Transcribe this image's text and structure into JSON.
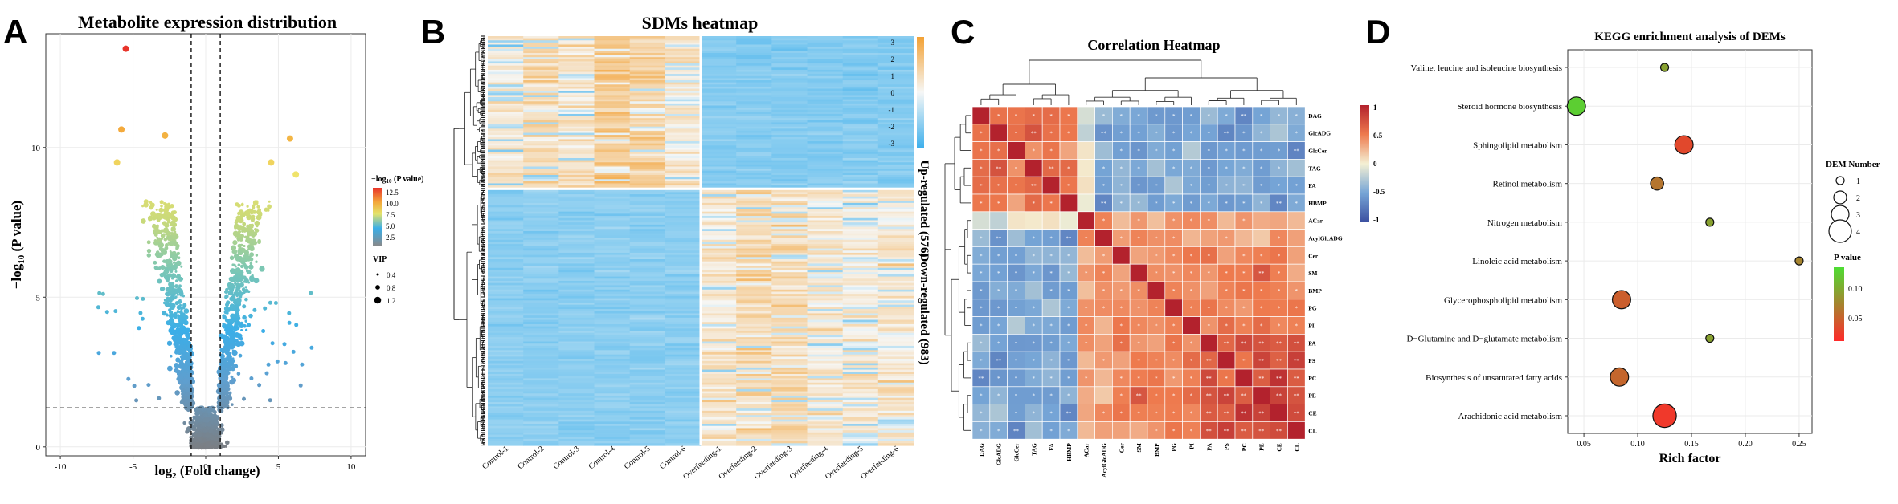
{
  "panels": {
    "A": {
      "letter": "A"
    },
    "B": {
      "letter": "B"
    },
    "C": {
      "letter": "C"
    },
    "D": {
      "letter": "D"
    }
  },
  "chart_data": [
    {
      "type": "scatter",
      "title": "Metabolite expression distribution",
      "xlabel": "log2 (Fold change)",
      "ylabel": "-log10 (P value)",
      "xlim": [
        -11,
        11
      ],
      "ylim": [
        -0.3,
        13.8
      ],
      "xticks": [
        -10,
        -5,
        0,
        5,
        10
      ],
      "yticks": [
        0,
        5,
        10
      ],
      "thresholds": {
        "x": [
          -1,
          1
        ],
        "y": 1.3
      },
      "color_legend": {
        "title": "-log10 (P value)",
        "ticks": [
          "12.5",
          "10.0",
          "7.5",
          "5.0",
          "2.5"
        ]
      },
      "size_legend": {
        "title": "VIP",
        "items": [
          "0.4",
          "0.8",
          "1.2"
        ]
      },
      "highlight_points": [
        {
          "x": -5.5,
          "y": 13.3
        },
        {
          "x": -5.8,
          "y": 10.6
        },
        {
          "x": -2.8,
          "y": 10.4
        },
        {
          "x": -6.1,
          "y": 9.5
        },
        {
          "x": 5.8,
          "y": 10.3
        },
        {
          "x": 6.2,
          "y": 9.1
        },
        {
          "x": 4.5,
          "y": 9.5
        }
      ]
    },
    {
      "type": "heatmap",
      "title": "SDMs heatmap",
      "columns": [
        "Control-1",
        "Control-2",
        "Control-3",
        "Control-4",
        "Control-5",
        "Control-6",
        "Overfeeding-1",
        "Overfeeding-2",
        "Overfeeding-3",
        "Overfeeding-4",
        "Overfeeding-5",
        "Overfeeding-6"
      ],
      "row_groups": [
        "Up-regulated (576)",
        "Down-regulated (983)"
      ],
      "colorbar_ticks": [
        "3",
        "2",
        "1",
        "0",
        "-1",
        "-2",
        "-3"
      ],
      "colors": {
        "low": "#3fb0ec",
        "mid": "#f6f7f6",
        "high": "#f3a134"
      }
    },
    {
      "type": "heatmap",
      "title": "Correlation Heatmap",
      "labels": [
        "DAG",
        "GlcADG",
        "GlcCer",
        "TAG",
        "FA",
        "HBMP",
        "ACar",
        "AcylGlcADG",
        "Cer",
        "SM",
        "BMP",
        "PG",
        "PI",
        "PA",
        "PS",
        "PC",
        "PE",
        "CE",
        "CL"
      ],
      "groups": [
        [
          0,
          5
        ],
        [
          6,
          18
        ]
      ],
      "colorbar_ticks": [
        "1",
        "0.5",
        "0",
        "-0.5",
        "-1"
      ],
      "colors": {
        "low": "#3b4fa0",
        "mid": "#f4f0d4",
        "high": "#b3222d"
      }
    },
    {
      "type": "scatter",
      "title": "KEGG enrichment analysis of DEMs",
      "xlabel": "Rich factor",
      "xlim": [
        0.035,
        0.262
      ],
      "xticks": [
        "0.05",
        "0.10",
        "0.15",
        "0.20",
        "0.25"
      ],
      "xtick_values": [
        0.05,
        0.1,
        0.15,
        0.2,
        0.25
      ],
      "categories": [
        "Valine, leucine and isoleucine biosynthesis",
        "Steroid hormone biosynthesis",
        "Sphingolipid metabolism",
        "Retinol metabolism",
        "Nitrogen metabolism",
        "Linoleic acid metabolism",
        "Glycerophospholipid metabolism",
        "D−Glutamine and D−glutamate metabolism",
        "Biosynthesis of unsaturated fatty acids",
        "Arachidonic acid metabolism"
      ],
      "rich_factor": [
        0.125,
        0.043,
        0.143,
        0.118,
        0.167,
        0.25,
        0.085,
        0.167,
        0.083,
        0.125
      ],
      "dem_number": [
        1,
        3,
        3,
        2,
        1,
        1,
        3,
        1,
        3,
        4
      ],
      "p_value": [
        0.09,
        0.12,
        0.03,
        0.06,
        0.09,
        0.07,
        0.045,
        0.09,
        0.05,
        0.02
      ],
      "size_legend": {
        "title": "DEM Number",
        "items": [
          "1",
          "2",
          "3",
          "4"
        ]
      },
      "color_legend": {
        "title": "P value",
        "ticks": [
          "0.10",
          "0.05"
        ],
        "colors": [
          "#4ddd33",
          "#ff2a2a"
        ]
      }
    }
  ]
}
